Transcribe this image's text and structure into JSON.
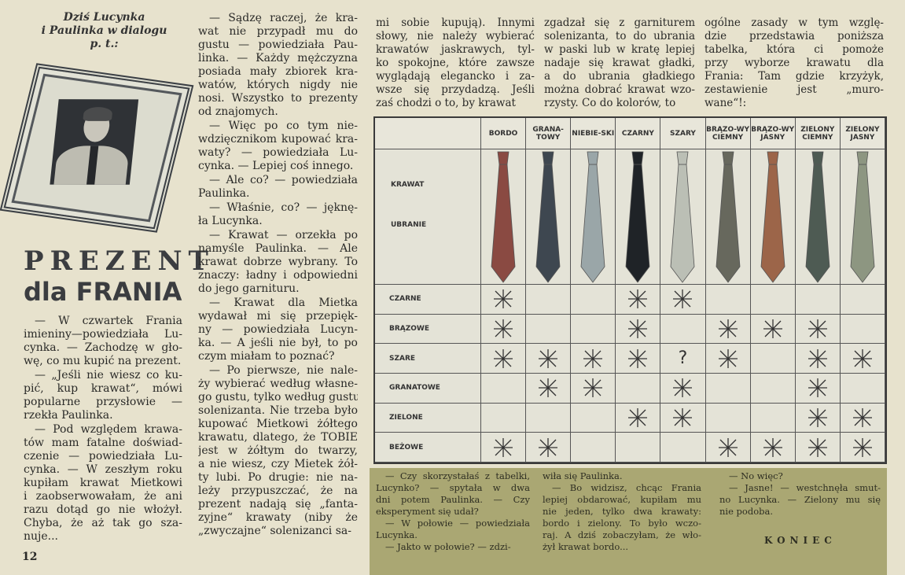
{
  "intro": [
    "Dziś Lucynka",
    "i Paulinka w dialogu",
    "p. t.:"
  ],
  "title": {
    "line1": "PREZENT",
    "line2": "dla FRANIA"
  },
  "page_number": "12",
  "columns": [
    [
      [
        "— W czwartek Frania",
        "imieniny—powiedziała Lu-",
        "cynka. — Zachodzę w gło-",
        "wę, co mu kupić na prezent."
      ],
      [
        "— „Jeśli nie wiesz co ku-",
        "pić, kup krawat“, mówi",
        "popularne przysłowie —",
        "rzekła Paulinka."
      ],
      [
        "— Pod względem krawa-",
        "tów mam fatalne doświad-",
        "czenie — powiedziała Lu-",
        "cynka. — W zeszłym roku",
        "kupiłam krawat Mietkowi",
        "i zaobserwowałam, że ani",
        "razu dotąd go nie włożył.",
        "Chyba, że aż tak go sza-",
        "nuje..."
      ]
    ],
    [
      [
        "— Sądzę raczej, że kra-",
        "wat nie przypadł mu do",
        "gustu — powiedziała Pau-",
        "linka. — Każdy mężczyzna",
        "posiada mały zbiorek kra-",
        "watów, których nigdy nie",
        "nosi. Wszystko to prezenty",
        "od znajomych."
      ],
      [
        "— Więc po co tym nie-",
        "wdzięcznikom kupować kra-",
        "waty? — powiedziała Lu-",
        "cynka. — Lepiej coś innego."
      ],
      [
        "— Ale co? — powiedziała",
        "Paulinka."
      ],
      [
        "— Właśnie, co? — jęknę-",
        "ła Lucynka."
      ],
      [
        "— Krawat — orzekła po",
        "namyśle Paulinka. — Ale",
        "krawat dobrze wybrany. To",
        "znaczy: ładny i odpowiedni",
        "do jego garnituru."
      ],
      [
        "— Krawat dla Mietka",
        "wydawał mi się przepięk-",
        "ny — powiedziała Lucyn-",
        "ka. — A jeśli nie był, to po",
        "czym miałam to poznać?"
      ],
      [
        "— Po pierwsze, nie nale-",
        "ży wybierać według własne-",
        "go gustu, tylko według gustu",
        "solenizanta. Nie trzeba było",
        "kupować Mietkowi żółtego",
        "krawatu, dlatego, że TOBIE",
        "jest w żółtym do twarzy,",
        "a nie wiesz, czy Mietek żół-",
        "ty lubi. Po drugie: nie na-",
        "leży przypuszczać, że na",
        "prezent nadają się „fanta-",
        "zyjne“ krawaty (niby że",
        "„zwyczajne“ solenizanci sa-"
      ]
    ],
    [
      [
        "mi sobie kupują). Innymi",
        "słowy, nie należy wybierać",
        "krawatów jaskrawych, tyl-",
        "ko spokojne, które zawsze",
        "wyglądają elegancko i za-",
        "wsze się przydadzą. Jeśli",
        "zaś chodzi o to, by krawat"
      ]
    ],
    [
      [
        "zgadzał się z garniturem",
        "solenizanta, to do ubrania",
        "w paski lub w kratę lepiej",
        "nadaje się krawat gładki,",
        "a do ubrania gładkiego",
        "można dobrać krawat wzo-",
        "rzysty. Co do kolorów, to"
      ]
    ],
    [
      [
        "ogólne zasady w tym wzglę-",
        "dzie przedstawia poniższa",
        "tabelka, która ci pomoże",
        "przy wyborze krawatu dla",
        "Frania: Tam gdzie krzyżyk,",
        "zestawienie jest „muro-",
        "wane“!:"
      ]
    ]
  ],
  "table": {
    "tie_label": "KRAWAT",
    "suit_label": "UBRANIE",
    "ties": [
      {
        "label": "BORDO",
        "color": "#8a4a42"
      },
      {
        "label": "GRANA-TOWY",
        "color": "#3e4750"
      },
      {
        "label": "NIEBIE-SKI",
        "color": "#9aa6a8"
      },
      {
        "label": "CZARNY",
        "color": "#1f2327"
      },
      {
        "label": "SZARY",
        "color": "#bbbfb5"
      },
      {
        "label": "BRĄZO-WY CIEMNY",
        "color": "#67685d"
      },
      {
        "label": "BRĄZO-WY JASNY",
        "color": "#9c6549"
      },
      {
        "label": "ZIELONY CIEMNY",
        "color": "#4e5b53"
      },
      {
        "label": "ZIELONY JASNY",
        "color": "#8d9681"
      }
    ],
    "rows": [
      {
        "label": "CZARNE",
        "marks": [
          "x",
          "",
          "",
          "x",
          "x",
          "",
          "",
          "",
          ""
        ]
      },
      {
        "label": "BRĄZOWE",
        "marks": [
          "x",
          "",
          "",
          "x",
          "",
          "x",
          "x",
          "x",
          ""
        ]
      },
      {
        "label": "SZARE",
        "marks": [
          "x",
          "x",
          "x",
          "x",
          "?",
          "x",
          "",
          "x",
          "x"
        ]
      },
      {
        "label": "GRANATOWE",
        "marks": [
          "",
          "x",
          "x",
          "",
          "x",
          "",
          "",
          "x",
          ""
        ]
      },
      {
        "label": "ZIELONE",
        "marks": [
          "",
          "",
          "",
          "x",
          "x",
          "",
          "",
          "x",
          "x"
        ]
      },
      {
        "label": "BEŻOWE",
        "marks": [
          "x",
          "x",
          "",
          "",
          "",
          "x",
          "x",
          "x",
          "x"
        ]
      }
    ]
  },
  "box": {
    "background": "#aaa773",
    "columns": [
      [
        [
          "— Czy skorzystałaś z tabelki,",
          "Lucynko? — spytała w dwa",
          "dni potem Paulinka. — Czy",
          "eksperyment się udał?"
        ],
        [
          "— W połowie — powiedziała",
          "Lucynka."
        ],
        [
          "— Jakto w połowie? — zdzi-"
        ]
      ],
      [
        [
          "wiła się Paulinka."
        ],
        [
          "— Bo widzisz, chcąc Frania",
          "lepiej obdarować, kupiłam mu",
          "nie jeden, tylko dwa krawaty:",
          "bordo i zielony. To było wczo-",
          "raj. A dziś zobaczyłam, że wło-",
          "żył krawat bordo..."
        ]
      ],
      [
        [
          "— No więc?"
        ],
        [
          "— Jasne! — westchnęła smut-",
          "no Lucynka. — Zielony mu się",
          "nie podoba."
        ]
      ]
    ],
    "end": "KONIEC"
  }
}
